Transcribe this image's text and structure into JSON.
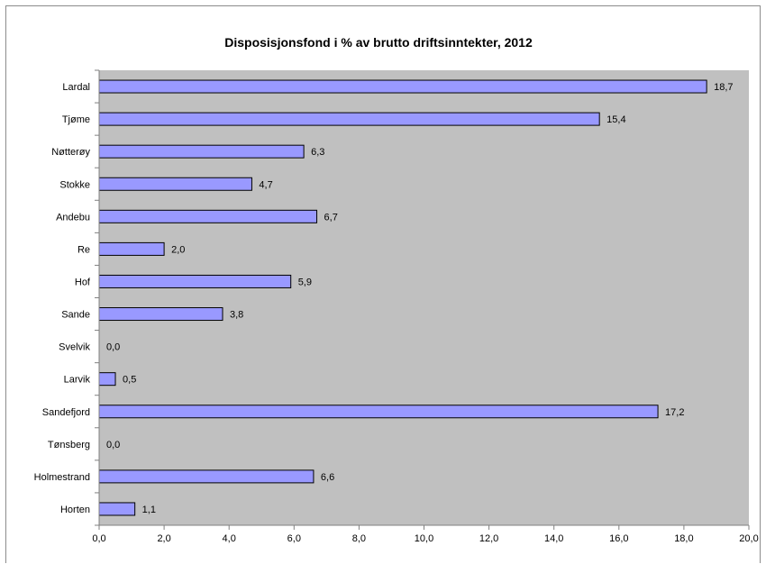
{
  "chart_data": {
    "type": "bar",
    "orientation": "horizontal",
    "title": "Disposisjonsfond i % av brutto driftsinntekter, 2012",
    "xlabel": "",
    "ylabel": "",
    "categories": [
      "Lardal",
      "Tjøme",
      "Nøtterøy",
      "Stokke",
      "Andebu",
      "Re",
      "Hof",
      "Sande",
      "Svelvik",
      "Larvik",
      "Sandefjord",
      "Tønsberg",
      "Holmestrand",
      "Horten"
    ],
    "values": [
      18.7,
      15.4,
      6.3,
      4.7,
      6.7,
      2.0,
      5.9,
      3.8,
      0.0,
      0.5,
      17.2,
      0.0,
      6.6,
      1.1
    ],
    "data_labels": [
      "18,7",
      "15,4",
      "6,3",
      "4,7",
      "6,7",
      "2,0",
      "5,9",
      "3,8",
      "0,0",
      "0,5",
      "17,2",
      "0,0",
      "6,6",
      "1,1"
    ],
    "xlim": [
      0,
      20
    ],
    "xticks": [
      0,
      2,
      4,
      6,
      8,
      10,
      12,
      14,
      16,
      18,
      20
    ],
    "xtick_labels": [
      "0,0",
      "2,0",
      "4,0",
      "6,0",
      "8,0",
      "10,0",
      "12,0",
      "14,0",
      "16,0",
      "18,0",
      "20,0"
    ],
    "grid": false,
    "legend": "none",
    "colors": {
      "bar_fill": "#9999ff",
      "bar_stroke": "#000000",
      "plot_background": "#c0c0c0",
      "axis": "#808080"
    }
  }
}
